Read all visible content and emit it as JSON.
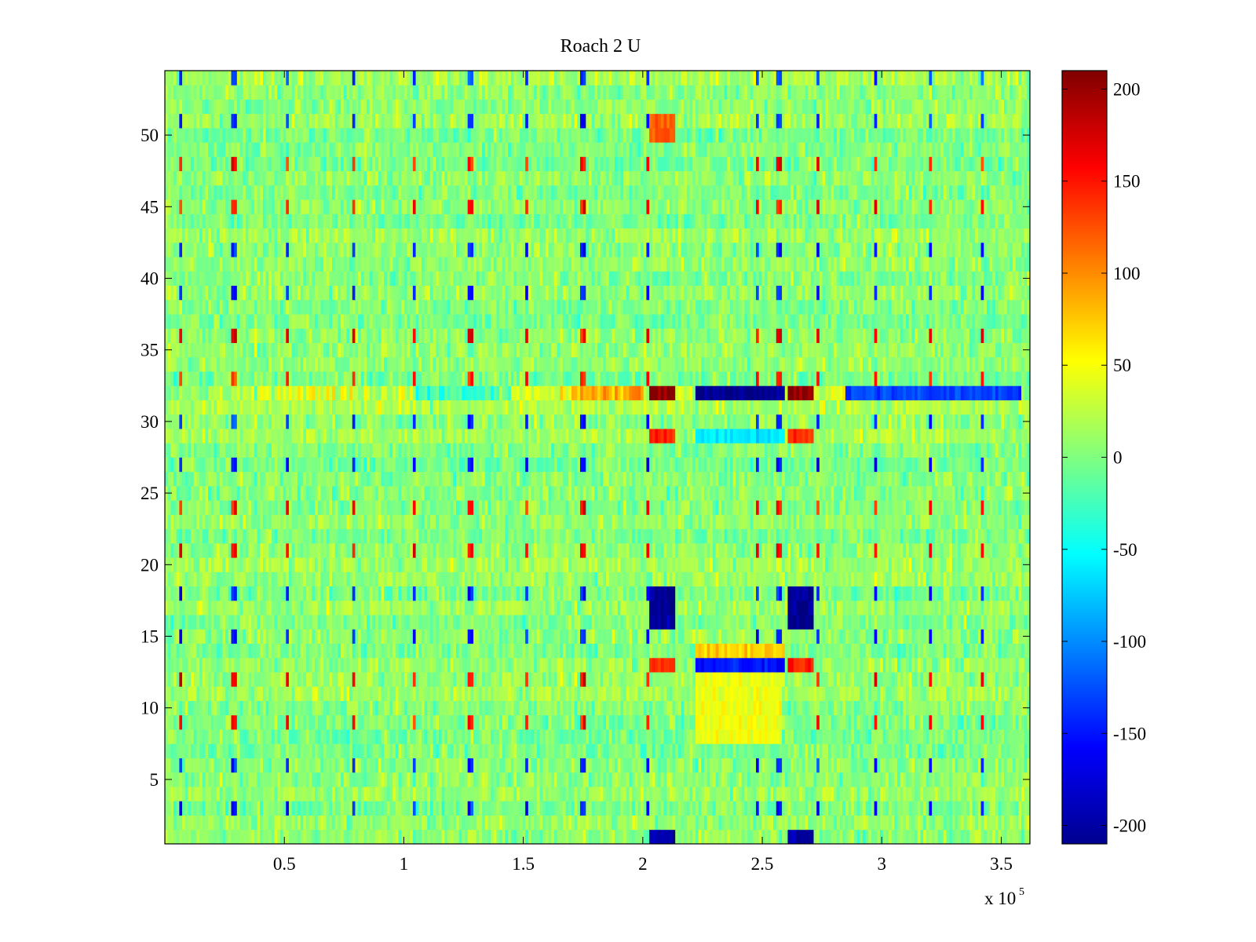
{
  "chart_data": {
    "type": "heatmap",
    "title": "Roach 2 U",
    "xlabel": "",
    "ylabel": "",
    "x_multiplier_label": "x 10",
    "x_multiplier_exponent": "5",
    "xlim": [
      0,
      362000
    ],
    "ylim": [
      0.5,
      54.5
    ],
    "x_ticks": [
      50000,
      100000,
      150000,
      200000,
      250000,
      300000,
      350000
    ],
    "x_tick_labels": [
      "0.5",
      "1",
      "1.5",
      "2",
      "2.5",
      "3",
      "3.5"
    ],
    "y_ticks": [
      5,
      10,
      15,
      20,
      25,
      30,
      35,
      40,
      45,
      50
    ],
    "y_tick_labels": [
      "5",
      "10",
      "15",
      "20",
      "25",
      "30",
      "35",
      "40",
      "45",
      "50"
    ],
    "rows": 54,
    "colormap": "jet",
    "clim": [
      -210,
      210
    ],
    "colorbar_ticks": [
      200,
      150,
      100,
      50,
      0,
      -50,
      -100,
      -150,
      -200
    ],
    "colorbar_tick_labels": [
      "200",
      "150",
      "100",
      "50",
      "0",
      "-50",
      "-100",
      "-150",
      "-200"
    ],
    "background_mean": 5,
    "background_noise": 18,
    "periodic_spike_x": [
      7000,
      29000,
      51000,
      79000,
      104000,
      128000,
      151000,
      175000,
      202000,
      248000,
      257000,
      273000,
      297000,
      320000,
      342000
    ],
    "features": [
      {
        "name": "row-32-band",
        "rows": [
          32
        ],
        "x_start": 22000,
        "x_end": 360000,
        "profile": [
          [
            22000,
            15
          ],
          [
            40000,
            45
          ],
          [
            80000,
            35
          ],
          [
            105000,
            -25
          ],
          [
            145000,
            35
          ],
          [
            170000,
            80
          ],
          [
            190000,
            90
          ],
          [
            200000,
            40
          ]
        ]
      },
      {
        "name": "row-32-hot-left",
        "rows": [
          32
        ],
        "x_start": 203000,
        "x_end": 214000,
        "value": 205
      },
      {
        "name": "row-32-cold",
        "rows": [
          32
        ],
        "x_start": 222000,
        "x_end": 259000,
        "value": -205
      },
      {
        "name": "row-32-hot-right",
        "rows": [
          32
        ],
        "x_start": 261000,
        "x_end": 272000,
        "value": 200
      },
      {
        "name": "row-32-right-tail",
        "rows": [
          32
        ],
        "x_start": 285000,
        "x_end": 358000,
        "value": -130
      },
      {
        "name": "rows-16-18-cold-left",
        "rows": [
          16,
          17,
          18
        ],
        "x_start": 203000,
        "x_end": 213000,
        "value": -200
      },
      {
        "name": "rows-16-18-cold-right",
        "rows": [
          16,
          17,
          18
        ],
        "x_start": 261000,
        "x_end": 271000,
        "value": -200
      },
      {
        "name": "row-13-cold",
        "rows": [
          13
        ],
        "x_start": 222000,
        "x_end": 259000,
        "value": -150
      },
      {
        "name": "row-14-warm",
        "rows": [
          14
        ],
        "x_start": 222000,
        "x_end": 259000,
        "value": 70
      },
      {
        "name": "rows-8-12-warm",
        "rows": [
          8,
          9,
          10,
          11,
          12
        ],
        "x_start": 222000,
        "x_end": 258000,
        "value": 45
      },
      {
        "name": "row-29-hot-left",
        "rows": [
          29
        ],
        "x_start": 203000,
        "x_end": 213000,
        "value": 140
      },
      {
        "name": "row-29-hot-right",
        "rows": [
          29
        ],
        "x_start": 261000,
        "x_end": 271000,
        "value": 140
      },
      {
        "name": "row-29-cold-mid",
        "rows": [
          29
        ],
        "x_start": 222000,
        "x_end": 259000,
        "value": -60
      },
      {
        "name": "rows-50-51-hot",
        "rows": [
          50,
          51
        ],
        "x_start": 203000,
        "x_end": 213000,
        "value": 120
      },
      {
        "name": "row-13-hot-left",
        "rows": [
          13
        ],
        "x_start": 203000,
        "x_end": 213000,
        "value": 140
      },
      {
        "name": "row-13-hot-right",
        "rows": [
          13
        ],
        "x_start": 261000,
        "x_end": 271000,
        "value": 140
      },
      {
        "name": "row-1-cold",
        "rows": [
          1
        ],
        "x_start": 203000,
        "x_end": 213000,
        "value": -190
      },
      {
        "name": "row-1-cold-right",
        "rows": [
          1
        ],
        "x_start": 261000,
        "x_end": 271000,
        "value": -190
      }
    ]
  }
}
